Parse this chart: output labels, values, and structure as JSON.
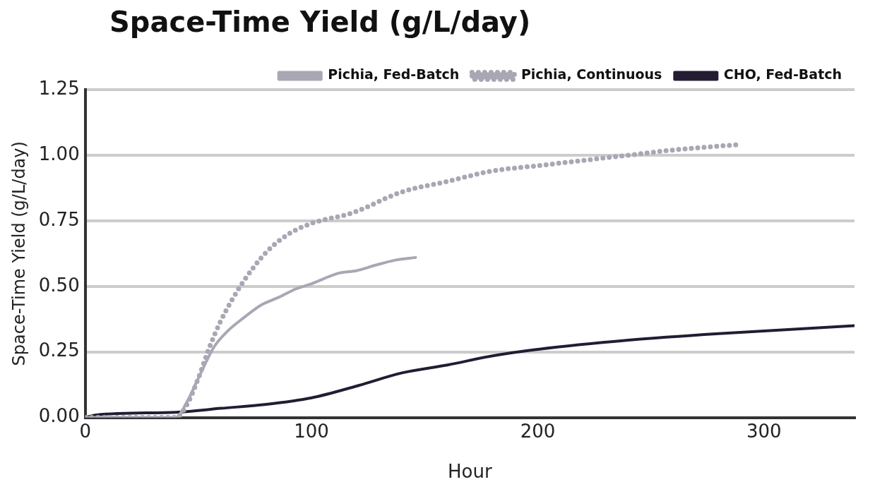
{
  "chart_data": {
    "type": "line",
    "title": "Space-Time Yield (g/L/day)",
    "xlabel": "Hour",
    "ylabel": "Space-Time Yield (g/L/day)",
    "series": [
      {
        "name": "Pichia, Fed-Batch",
        "color": "#a9a7b4",
        "line_style": "solid",
        "x": [
          0,
          20,
          40,
          45,
          50,
          57,
          63,
          70,
          78,
          86,
          93,
          100,
          112,
          120,
          128,
          137,
          146
        ],
        "values": [
          0,
          0,
          0,
          0.06,
          0.15,
          0.27,
          0.33,
          0.38,
          0.43,
          0.46,
          0.49,
          0.51,
          0.55,
          0.56,
          0.58,
          0.6,
          0.61
        ]
      },
      {
        "name": "Pichia, Continuous",
        "color": "#a9a7b4",
        "line_style": "dotted",
        "x": [
          0,
          20,
          40,
          45,
          50,
          55,
          60,
          65,
          70,
          80,
          90,
          100,
          118,
          140,
          160,
          180,
          200,
          220,
          240,
          260,
          288
        ],
        "values": [
          0,
          0,
          0,
          0.05,
          0.15,
          0.27,
          0.37,
          0.45,
          0.52,
          0.63,
          0.7,
          0.74,
          0.78,
          0.86,
          0.9,
          0.94,
          0.96,
          0.98,
          1.0,
          1.02,
          1.04
        ]
      },
      {
        "name": "CHO, Fed-Batch",
        "color": "#231c33",
        "line_style": "solid",
        "x": [
          0,
          5,
          40,
          60,
          80,
          100,
          120,
          140,
          160,
          180,
          200,
          240,
          280,
          340
        ],
        "values": [
          0,
          0.01,
          0.02,
          0.035,
          0.05,
          0.075,
          0.12,
          0.17,
          0.2,
          0.235,
          0.26,
          0.295,
          0.32,
          0.35
        ]
      }
    ],
    "xlim": [
      0,
      340
    ],
    "xticks": [
      0,
      100,
      200,
      300
    ],
    "ylim": [
      0,
      1.25
    ],
    "yticks": [
      {
        "value": 0,
        "label": "0.00"
      },
      {
        "value": 0.25,
        "label": "0.25"
      },
      {
        "value": 0.5,
        "label": "0.50"
      },
      {
        "value": 0.75,
        "label": "0.75"
      },
      {
        "value": 1,
        "label": "1.00"
      },
      {
        "value": 1.25,
        "label": "1.25"
      }
    ],
    "grid": "y",
    "legend": "top",
    "marker": "none"
  }
}
